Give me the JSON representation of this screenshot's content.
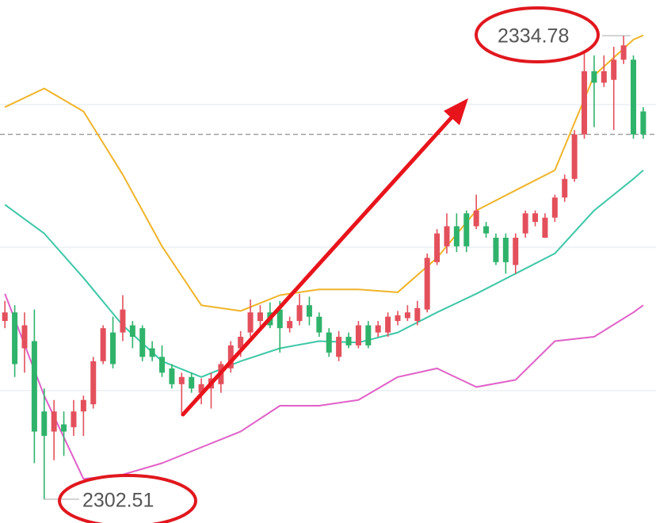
{
  "chart_data": {
    "type": "candlestick",
    "xlim": [
      -0.5,
      66.3
    ],
    "ylim": [
      2300.83,
      2337.26
    ],
    "up_color": "#e3505c",
    "down_color": "#2fb36b",
    "open": [
      2314.9,
      2315.5,
      2313.0,
      2313.5,
      2308.6,
      2307.2,
      2307.7,
      2307.5,
      2308.6,
      2309.1,
      2312.1,
      2314.1,
      2314.1,
      2314.6,
      2314.4,
      2313.0,
      2312.4,
      2311.6,
      2310.5,
      2311.0,
      2309.9,
      2310.2,
      2310.5,
      2311.6,
      2313.0,
      2314.1,
      2314.9,
      2315.5,
      2315.7,
      2314.4,
      2314.9,
      2316.0,
      2315.2,
      2314.1,
      2312.4,
      2313.8,
      2313.2,
      2314.6,
      2314.1,
      2314.1,
      2314.9,
      2315.1,
      2314.9,
      2315.7,
      2319.0,
      2320.1,
      2321.5,
      2322.4,
      2321.5,
      2321.5,
      2320.7,
      2320.7,
      2318.8,
      2321.0,
      2321.8,
      2320.7,
      2322.1,
      2323.5,
      2324.8,
      2327.9,
      2332.3,
      2331.5,
      2331.7,
      2333.1,
      2333.1,
      2329.5
    ],
    "high": [
      2316.3,
      2316.0,
      2315.5,
      2315.7,
      2310.2,
      2309.4,
      2308.6,
      2309.4,
      2309.7,
      2312.4,
      2314.6,
      2315.2,
      2316.7,
      2314.9,
      2314.6,
      2313.5,
      2313.2,
      2311.9,
      2311.3,
      2311.3,
      2310.9,
      2311.3,
      2312.1,
      2313.5,
      2314.2,
      2316.4,
      2316.0,
      2316.2,
      2316.3,
      2315.2,
      2316.8,
      2316.6,
      2315.5,
      2314.4,
      2314.2,
      2314.1,
      2314.9,
      2314.9,
      2314.9,
      2315.5,
      2315.6,
      2316.0,
      2316.3,
      2319.6,
      2321.3,
      2322.4,
      2322.4,
      2322.6,
      2323.7,
      2321.8,
      2321.0,
      2321.0,
      2321.0,
      2322.6,
      2322.6,
      2322.4,
      2323.7,
      2325.1,
      2328.2,
      2333.7,
      2333.4,
      2333.4,
      2334.0,
      2334.78,
      2333.4,
      2329.8
    ],
    "low": [
      2314.4,
      2311.0,
      2311.3,
      2305.0,
      2302.51,
      2305.2,
      2305.5,
      2306.9,
      2306.9,
      2308.8,
      2311.9,
      2311.6,
      2313.5,
      2313.0,
      2312.1,
      2312.1,
      2311.0,
      2310.2,
      2308.3,
      2309.9,
      2309.1,
      2308.8,
      2309.9,
      2311.3,
      2312.4,
      2313.8,
      2314.4,
      2314.4,
      2312.7,
      2314.1,
      2314.6,
      2314.6,
      2313.8,
      2312.4,
      2312.1,
      2313.0,
      2313.0,
      2313.0,
      2313.8,
      2313.8,
      2314.6,
      2314.9,
      2314.6,
      2315.5,
      2318.8,
      2319.6,
      2319.7,
      2319.7,
      2321.3,
      2320.7,
      2318.8,
      2318.2,
      2318.2,
      2320.7,
      2321.5,
      2320.7,
      2321.8,
      2323.2,
      2324.6,
      2327.6,
      2328.4,
      2331.2,
      2328.2,
      2332.8,
      2327.6,
      2327.6
    ],
    "close": [
      2315.5,
      2311.9,
      2314.6,
      2307.2,
      2306.9,
      2308.6,
      2307.2,
      2308.6,
      2309.4,
      2312.1,
      2314.4,
      2311.9,
      2315.7,
      2313.8,
      2312.4,
      2312.4,
      2311.3,
      2310.5,
      2311.0,
      2310.2,
      2310.5,
      2310.9,
      2311.9,
      2313.2,
      2313.8,
      2315.5,
      2315.5,
      2314.6,
      2314.4,
      2314.9,
      2316.0,
      2315.2,
      2314.1,
      2312.7,
      2313.8,
      2313.2,
      2314.6,
      2313.2,
      2314.6,
      2315.2,
      2315.3,
      2315.5,
      2315.8,
      2319.3,
      2321.0,
      2321.5,
      2320.1,
      2320.1,
      2322.6,
      2321.0,
      2319.0,
      2319.0,
      2320.7,
      2322.4,
      2322.4,
      2322.1,
      2323.5,
      2324.8,
      2327.9,
      2332.3,
      2331.5,
      2332.3,
      2333.1,
      2334.1,
      2327.9,
      2327.9
    ],
    "band_x": [
      0,
      4,
      8,
      12,
      16,
      20,
      24,
      28,
      32,
      36,
      40,
      44,
      48,
      52,
      56,
      60,
      64,
      65
    ],
    "bands": [
      {
        "color": "#f0b429",
        "values": [
          2329.8,
          2331.1,
          2329.5,
          2325.1,
          2320.1,
          2316.0,
          2315.6,
          2316.7,
          2317.1,
          2317.1,
          2316.9,
          2319.3,
          2322.6,
          2324.0,
          2325.4,
          2332.0,
          2334.5,
          2334.8
        ]
      },
      {
        "color": "#3ec7a8",
        "values": [
          2323.0,
          2321.0,
          2317.9,
          2314.6,
          2312.1,
          2311.0,
          2312.1,
          2313.0,
          2313.5,
          2313.4,
          2314.1,
          2315.5,
          2316.8,
          2318.2,
          2319.6,
          2322.6,
          2324.8,
          2325.4
        ]
      },
      {
        "color": "#e060c8",
        "values": [
          2316.8,
          2309.7,
          2303.9,
          2304.2,
          2305.0,
          2306.1,
          2307.2,
          2309.0,
          2309.0,
          2309.4,
          2311.0,
          2311.6,
          2310.3,
          2310.8,
          2313.5,
          2313.8,
          2315.5,
          2316.0
        ]
      }
    ]
  }
}
